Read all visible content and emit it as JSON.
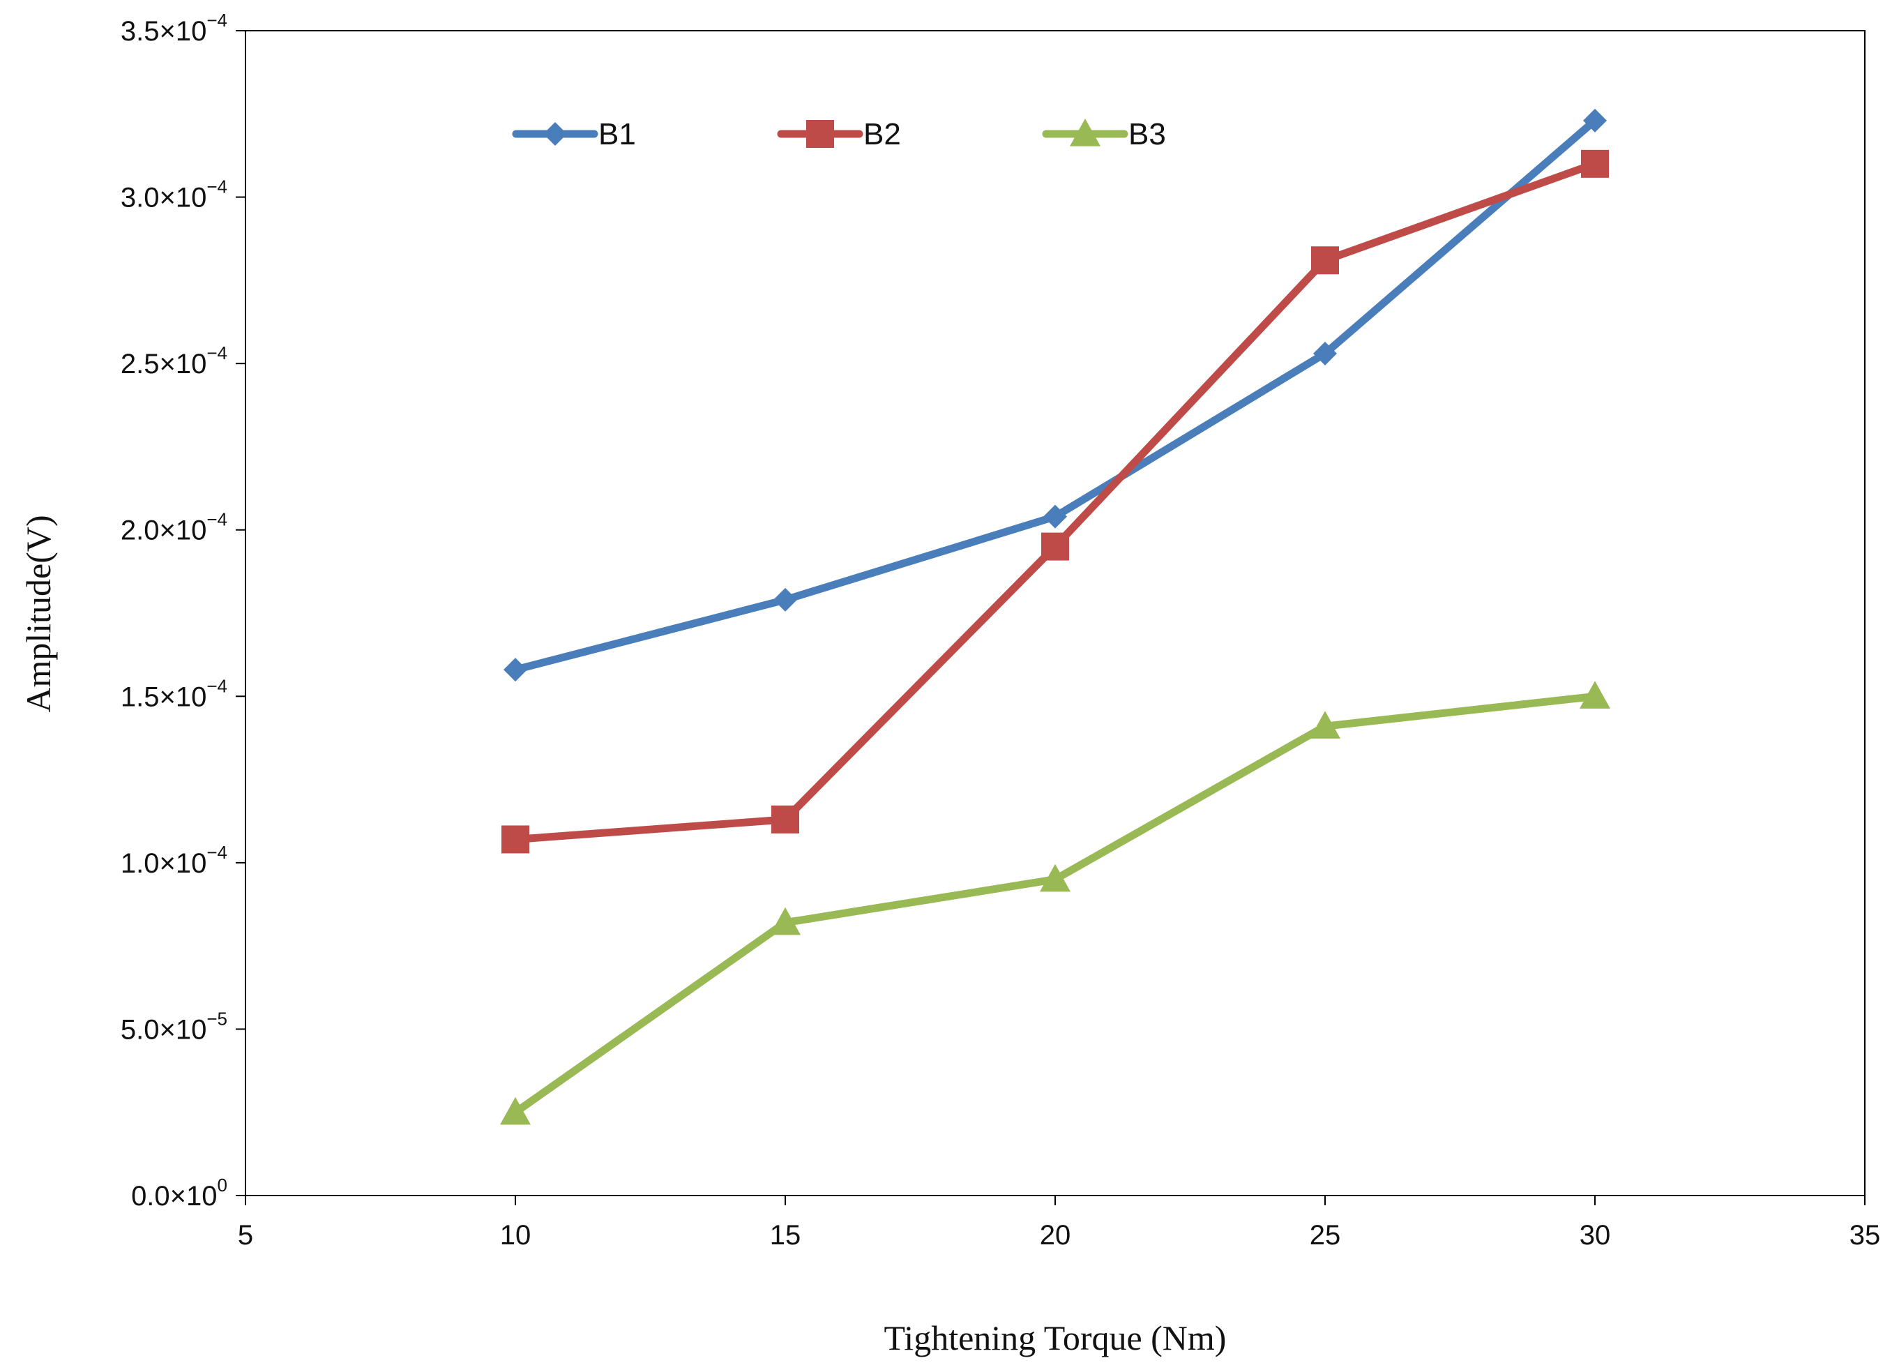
{
  "chart_data": {
    "type": "line",
    "title": "",
    "xlabel": "Tightening  Torque (Nm)",
    "ylabel": "Amplitude(V)",
    "xlim": [
      5,
      35
    ],
    "ylim": [
      0,
      0.00035
    ],
    "x_ticks": [
      {
        "value": 5,
        "label": "5"
      },
      {
        "value": 10,
        "label": "10"
      },
      {
        "value": 15,
        "label": "15"
      },
      {
        "value": 20,
        "label": "20"
      },
      {
        "value": 25,
        "label": "25"
      },
      {
        "value": 30,
        "label": "30"
      },
      {
        "value": 35,
        "label": "35"
      }
    ],
    "y_ticks": [
      {
        "value": 0,
        "mantissa": "0.0",
        "exponent": "0"
      },
      {
        "value": 5e-05,
        "mantissa": "5.0",
        "exponent": "−5"
      },
      {
        "value": 0.0001,
        "mantissa": "1.0",
        "exponent": "−4"
      },
      {
        "value": 0.00015,
        "mantissa": "1.5",
        "exponent": "−4"
      },
      {
        "value": 0.0002,
        "mantissa": "2.0",
        "exponent": "−4"
      },
      {
        "value": 0.00025,
        "mantissa": "2.5",
        "exponent": "−4"
      },
      {
        "value": 0.0003,
        "mantissa": "3.0",
        "exponent": "−4"
      },
      {
        "value": 0.00035,
        "mantissa": "3.5",
        "exponent": "−4"
      }
    ],
    "grid": false,
    "legend_position": "top-left",
    "x": [
      10,
      15,
      20,
      25,
      30
    ],
    "series": [
      {
        "name": "B1",
        "color": "#4a7ebb",
        "marker": "diamond",
        "values": [
          0.000158,
          0.000179,
          0.000204,
          0.000253,
          0.000323
        ]
      },
      {
        "name": "B2",
        "color": "#be4b48",
        "marker": "square",
        "values": [
          0.000107,
          0.000113,
          0.000195,
          0.000281,
          0.00031
        ]
      },
      {
        "name": "B3",
        "color": "#98b954",
        "marker": "triangle",
        "values": [
          2.5e-05,
          8.2e-05,
          9.5e-05,
          0.000141,
          0.00015
        ]
      }
    ]
  }
}
